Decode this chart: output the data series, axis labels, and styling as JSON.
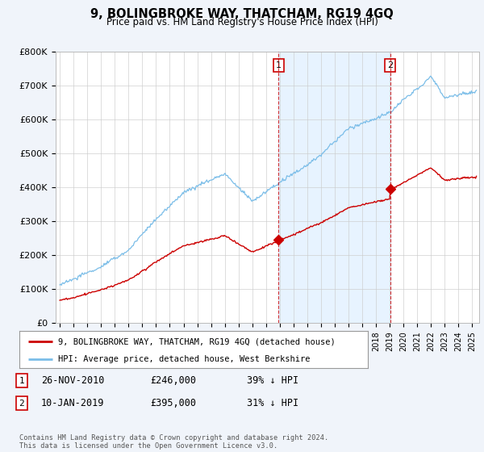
{
  "title": "9, BOLINGBROKE WAY, THATCHAM, RG19 4GQ",
  "subtitle": "Price paid vs. HM Land Registry's House Price Index (HPI)",
  "ylim": [
    0,
    800000
  ],
  "xlim_start": 1994.7,
  "xlim_end": 2025.5,
  "hpi_color": "#7abde8",
  "hpi_fill_color": "#ddeeff",
  "price_color": "#cc0000",
  "marker1_date": 2010.91,
  "marker1_price": 246000,
  "marker2_date": 2019.03,
  "marker2_price": 395000,
  "legend_line1": "9, BOLINGBROKE WAY, THATCHAM, RG19 4GQ (detached house)",
  "legend_line2": "HPI: Average price, detached house, West Berkshire",
  "annotation1_num": "1",
  "annotation1_date": "26-NOV-2010",
  "annotation1_price": "£246,000",
  "annotation1_pct": "39% ↓ HPI",
  "annotation2_num": "2",
  "annotation2_date": "10-JAN-2019",
  "annotation2_price": "£395,000",
  "annotation2_pct": "31% ↓ HPI",
  "footer": "Contains HM Land Registry data © Crown copyright and database right 2024.\nThis data is licensed under the Open Government Licence v3.0.",
  "background_color": "#f0f4fa",
  "plot_bg_color": "#ffffff"
}
